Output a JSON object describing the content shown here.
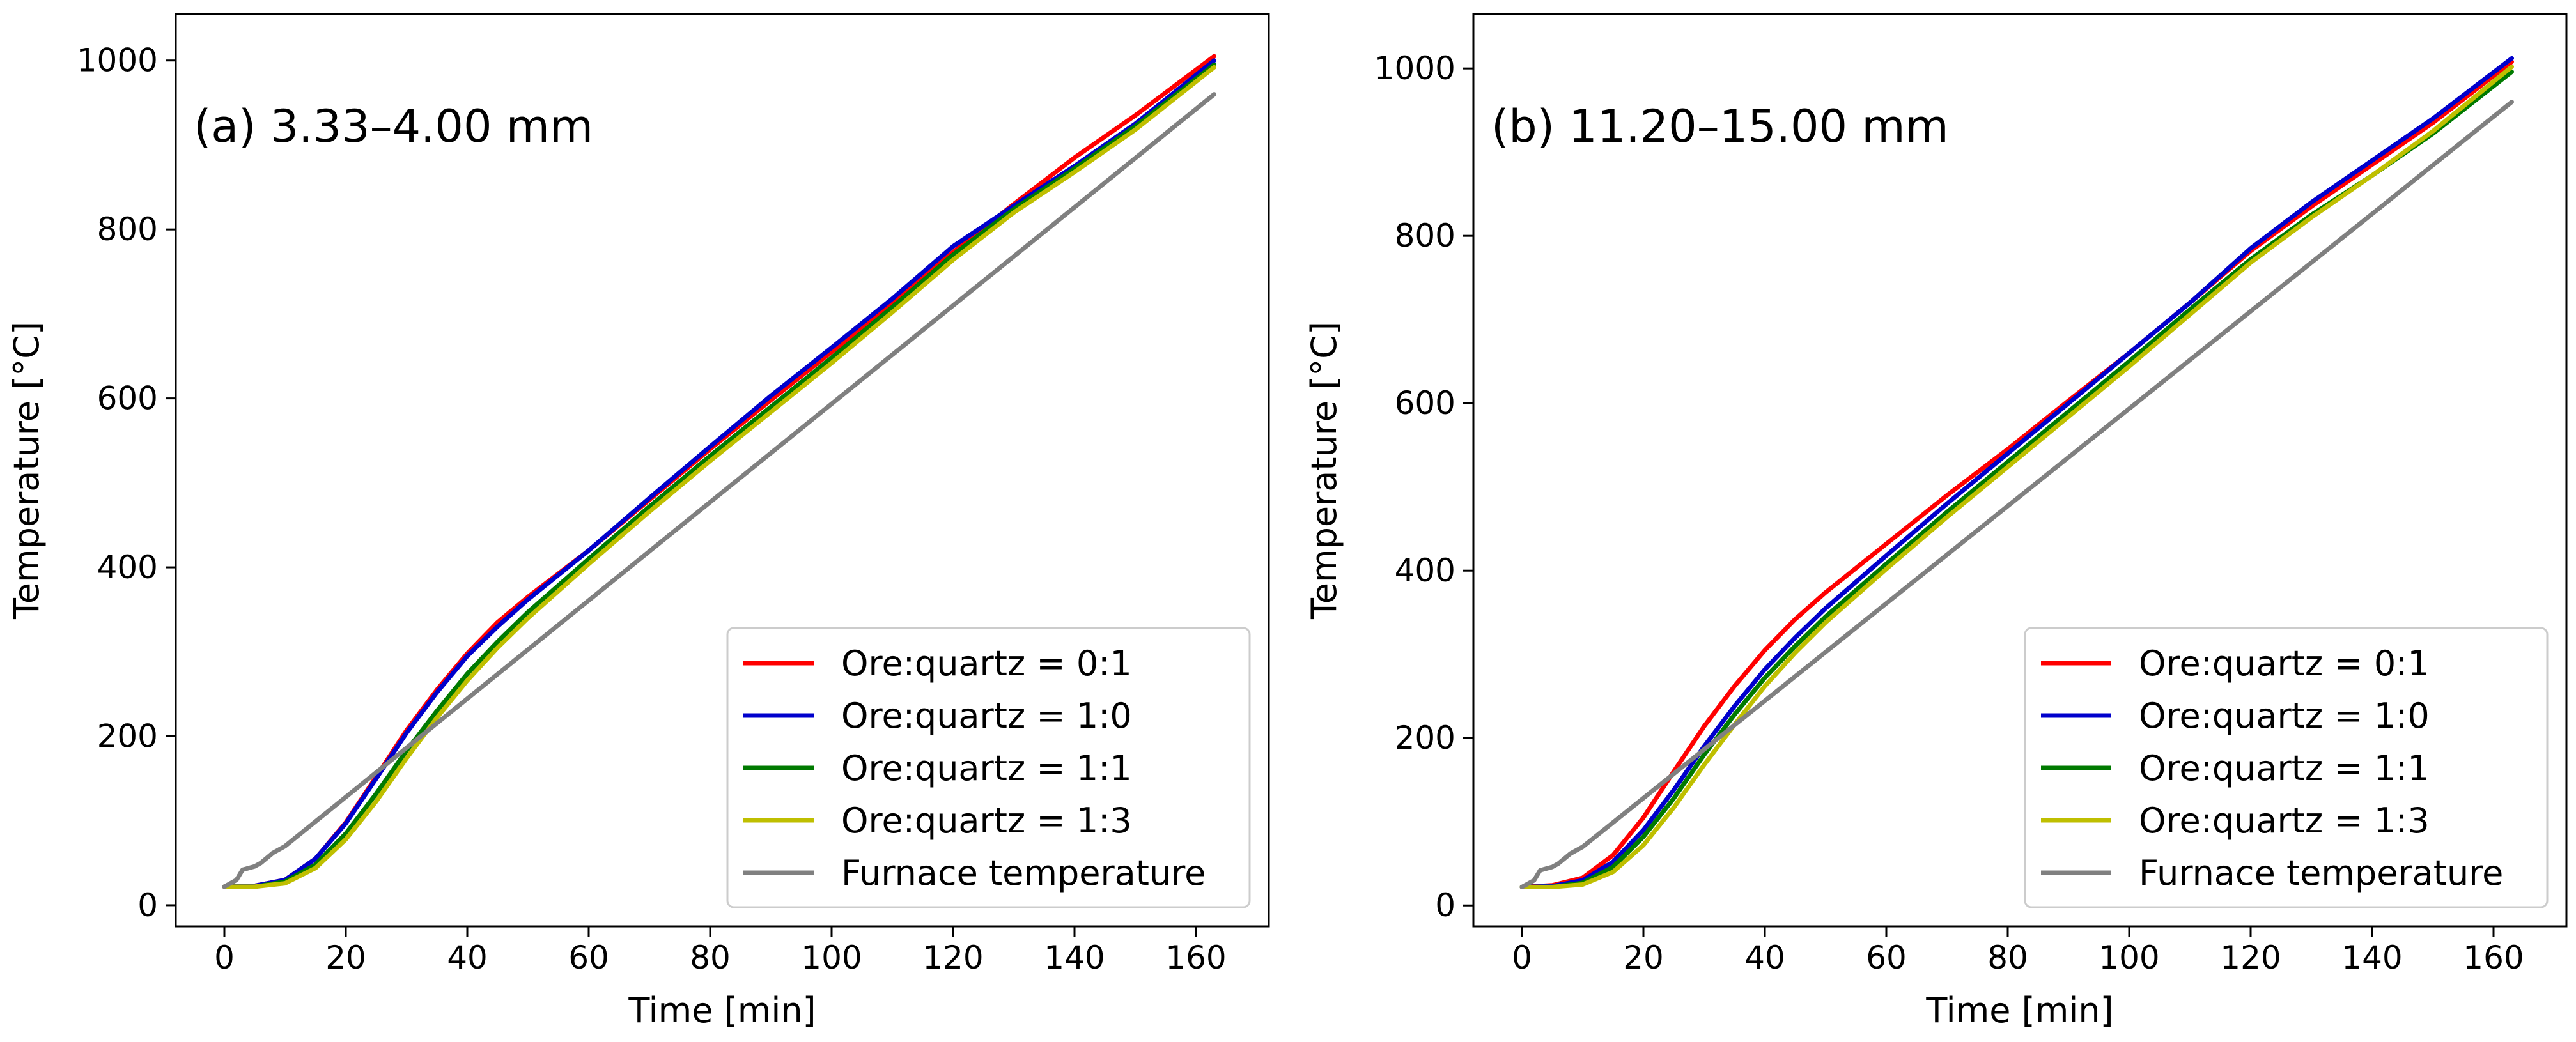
{
  "colors": {
    "ore_quartz_0_1": "#ff0000",
    "ore_quartz_1_0": "#0000cc",
    "ore_quartz_1_1": "#007a00",
    "ore_quartz_1_3": "#bfbf00",
    "furnace": "#808080"
  },
  "chart_data": [
    {
      "type": "line",
      "title": "(a) 3.33–4.00 mm",
      "xlabel": "Time [min]",
      "ylabel": "Temperature [°C]",
      "xlim": [
        -8,
        172
      ],
      "ylim": [
        -25,
        1055
      ],
      "xticks": [
        0,
        20,
        40,
        60,
        80,
        100,
        120,
        140,
        160
      ],
      "yticks": [
        0,
        200,
        400,
        600,
        800,
        1000
      ],
      "legend_position": "lower-right",
      "grid": false,
      "series": [
        {
          "name": "Ore:quartz = 0:1",
          "color_key": "ore_quartz_0_1",
          "x": [
            0,
            5,
            10,
            15,
            20,
            25,
            30,
            35,
            40,
            45,
            50,
            60,
            70,
            80,
            90,
            100,
            110,
            120,
            130,
            140,
            150,
            163
          ],
          "y": [
            22,
            23,
            30,
            55,
            98,
            152,
            207,
            255,
            298,
            335,
            365,
            420,
            480,
            540,
            598,
            655,
            712,
            773,
            830,
            885,
            935,
            1005
          ]
        },
        {
          "name": "Ore:quartz = 1:0",
          "color_key": "ore_quartz_1_0",
          "x": [
            0,
            5,
            10,
            15,
            20,
            25,
            30,
            35,
            40,
            45,
            50,
            60,
            70,
            80,
            90,
            100,
            110,
            120,
            130,
            140,
            150,
            163
          ],
          "y": [
            22,
            23,
            30,
            55,
            97,
            150,
            204,
            252,
            295,
            330,
            362,
            420,
            482,
            543,
            603,
            660,
            718,
            780,
            828,
            875,
            925,
            1000
          ]
        },
        {
          "name": "Ore:quartz = 1:1",
          "color_key": "ore_quartz_1_1",
          "x": [
            0,
            5,
            10,
            15,
            20,
            25,
            30,
            35,
            40,
            45,
            50,
            60,
            70,
            80,
            90,
            100,
            110,
            120,
            130,
            140,
            150,
            163
          ],
          "y": [
            22,
            22,
            28,
            48,
            85,
            132,
            183,
            230,
            274,
            312,
            347,
            410,
            472,
            532,
            590,
            648,
            708,
            770,
            824,
            872,
            922,
            995
          ]
        },
        {
          "name": "Ore:quartz = 1:3",
          "color_key": "ore_quartz_1_3",
          "x": [
            0,
            5,
            10,
            15,
            20,
            25,
            30,
            35,
            40,
            45,
            50,
            60,
            70,
            80,
            90,
            100,
            110,
            120,
            130,
            140,
            150,
            163
          ],
          "y": [
            22,
            22,
            26,
            44,
            78,
            123,
            174,
            222,
            266,
            305,
            340,
            404,
            466,
            526,
            584,
            642,
            702,
            764,
            820,
            868,
            918,
            992
          ]
        },
        {
          "name": "Furnace temperature",
          "color_key": "furnace",
          "x": [
            0,
            2,
            3,
            5,
            6,
            8,
            10,
            163
          ],
          "y": [
            22,
            30,
            42,
            46,
            50,
            62,
            70,
            960
          ]
        }
      ]
    },
    {
      "type": "line",
      "title": "(b) 11.20–15.00 mm",
      "xlabel": "Time [min]",
      "ylabel": "Temperature [°C]",
      "xlim": [
        -8,
        172
      ],
      "ylim": [
        -25,
        1065
      ],
      "xticks": [
        0,
        20,
        40,
        60,
        80,
        100,
        120,
        140,
        160
      ],
      "yticks": [
        0,
        200,
        400,
        600,
        800,
        1000
      ],
      "legend_position": "lower-right",
      "grid": false,
      "series": [
        {
          "name": "Ore:quartz = 0:1",
          "color_key": "ore_quartz_0_1",
          "x": [
            0,
            5,
            10,
            15,
            20,
            25,
            30,
            35,
            40,
            45,
            50,
            60,
            70,
            80,
            90,
            100,
            110,
            120,
            130,
            140,
            150,
            163
          ],
          "y": [
            22,
            24,
            33,
            60,
            105,
            160,
            214,
            262,
            305,
            342,
            374,
            432,
            490,
            545,
            603,
            660,
            720,
            782,
            835,
            885,
            935,
            1008
          ]
        },
        {
          "name": "Ore:quartz = 1:0",
          "color_key": "ore_quartz_1_0",
          "x": [
            0,
            5,
            10,
            15,
            20,
            25,
            30,
            35,
            40,
            45,
            50,
            60,
            70,
            80,
            90,
            100,
            110,
            120,
            130,
            140,
            150,
            163
          ],
          "y": [
            22,
            23,
            30,
            52,
            90,
            138,
            190,
            238,
            282,
            320,
            355,
            418,
            480,
            540,
            600,
            660,
            720,
            785,
            840,
            890,
            940,
            1012
          ]
        },
        {
          "name": "Ore:quartz = 1:1",
          "color_key": "ore_quartz_1_1",
          "x": [
            0,
            5,
            10,
            15,
            20,
            25,
            30,
            35,
            40,
            45,
            50,
            60,
            70,
            80,
            90,
            100,
            110,
            120,
            130,
            140,
            150,
            163
          ],
          "y": [
            22,
            22,
            27,
            46,
            82,
            128,
            180,
            228,
            272,
            310,
            345,
            408,
            470,
            530,
            590,
            650,
            712,
            772,
            825,
            872,
            922,
            996
          ]
        },
        {
          "name": "Ore:quartz = 1:3",
          "color_key": "ore_quartz_1_3",
          "x": [
            0,
            5,
            10,
            15,
            20,
            25,
            30,
            35,
            40,
            45,
            50,
            60,
            70,
            80,
            90,
            100,
            110,
            120,
            130,
            140,
            150,
            163
          ],
          "y": [
            22,
            22,
            25,
            40,
            72,
            117,
            168,
            216,
            262,
            302,
            338,
            402,
            464,
            524,
            584,
            644,
            706,
            768,
            822,
            872,
            925,
            1002
          ]
        },
        {
          "name": "Furnace temperature",
          "color_key": "furnace",
          "x": [
            0,
            2,
            3,
            5,
            6,
            8,
            10,
            163
          ],
          "y": [
            22,
            30,
            42,
            46,
            50,
            62,
            70,
            960
          ]
        }
      ]
    }
  ]
}
